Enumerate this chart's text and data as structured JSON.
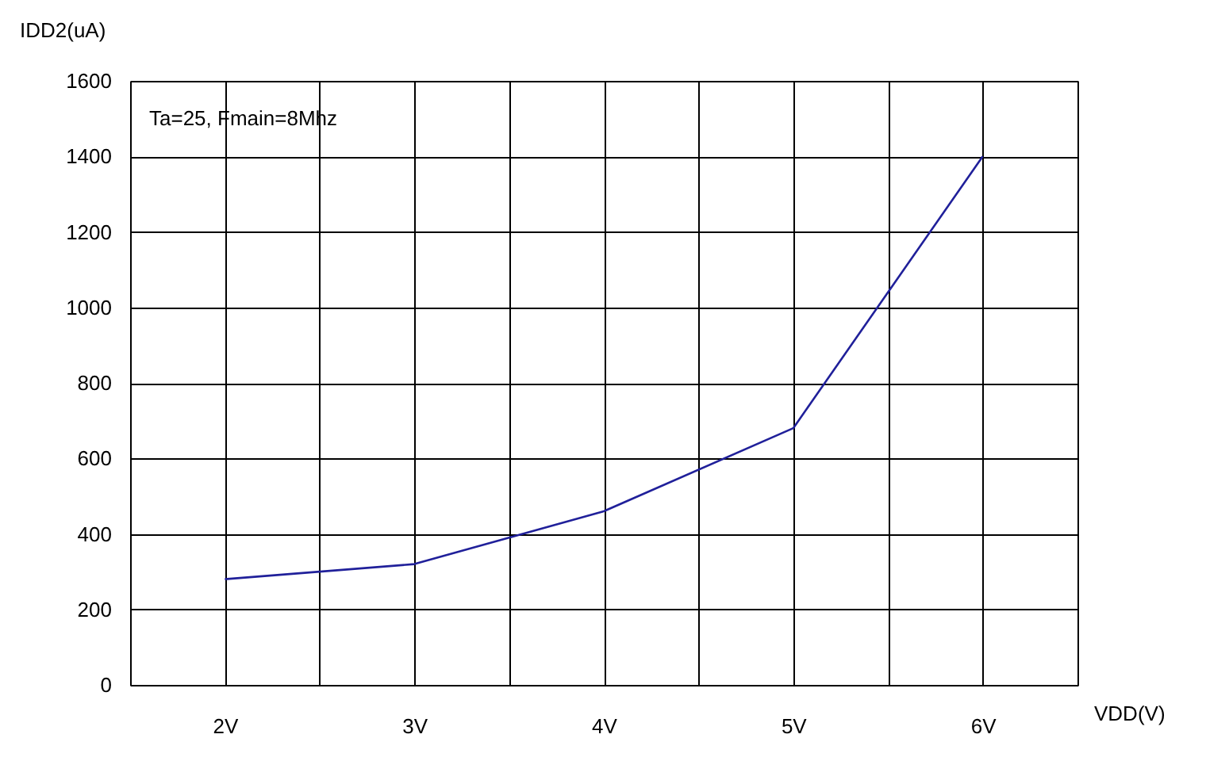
{
  "chart_data": {
    "type": "line",
    "xlabel": "VDD(V)",
    "ylabel": "IDD2(uA)",
    "annotations": [
      "Ta=25, Fmain=8Mhz"
    ],
    "x": [
      2,
      3,
      4,
      5,
      6
    ],
    "series": [
      {
        "color": "#20209a",
        "values": [
          280,
          320,
          460,
          680,
          1400
        ]
      }
    ],
    "xlim": [
      1.5,
      6.5
    ],
    "xticks": [
      {
        "value": 1.5,
        "label": null
      },
      {
        "value": 2,
        "label": "2V"
      },
      {
        "value": 2.5,
        "label": null
      },
      {
        "value": 3,
        "label": "3V"
      },
      {
        "value": 3.5,
        "label": null
      },
      {
        "value": 4,
        "label": "4V"
      },
      {
        "value": 4.5,
        "label": null
      },
      {
        "value": 5,
        "label": "5V"
      },
      {
        "value": 5.5,
        "label": null
      },
      {
        "value": 6,
        "label": "6V"
      },
      {
        "value": 6.5,
        "label": null
      }
    ],
    "ylim": [
      0,
      1600
    ],
    "yticks": [
      0,
      200,
      400,
      600,
      800,
      1000,
      1200,
      1400,
      1600
    ],
    "grid": true,
    "marker": "none",
    "line_style": "solid"
  }
}
